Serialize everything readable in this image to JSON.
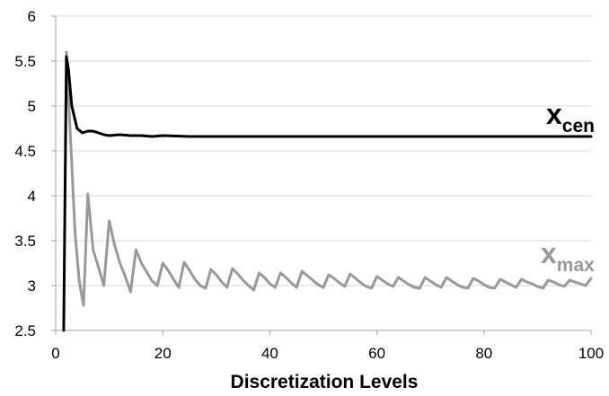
{
  "chart_data": {
    "type": "line",
    "title": "",
    "xlabel": "Discretization Levels",
    "ylabel": "",
    "xlim": [
      0,
      100
    ],
    "ylim": [
      2.5,
      6
    ],
    "x_ticks": [
      0,
      20,
      40,
      60,
      80,
      100
    ],
    "x_tick_labels": [
      "0",
      "20",
      "40",
      "60",
      "80",
      "100"
    ],
    "y_ticks": [
      2.5,
      3,
      3.5,
      4,
      4.5,
      5,
      5.5,
      6
    ],
    "y_tick_labels": [
      "2.5",
      "3",
      "3.5",
      "4",
      "4.5",
      "5",
      "5.5",
      "6"
    ],
    "grid": "horizontal",
    "legend": "none",
    "series": [
      {
        "label_main": "x",
        "label_sub": "cen",
        "color": "#000000",
        "points": [
          [
            1.5,
            2.5
          ],
          [
            2.0,
            5.55
          ],
          [
            2.4,
            5.4
          ],
          [
            3.0,
            5.0
          ],
          [
            4.0,
            4.75
          ],
          [
            5.0,
            4.7
          ],
          [
            6.0,
            4.72
          ],
          [
            7.0,
            4.72
          ],
          [
            8.0,
            4.7
          ],
          [
            9.0,
            4.68
          ],
          [
            10.0,
            4.67
          ],
          [
            12.0,
            4.68
          ],
          [
            14.0,
            4.67
          ],
          [
            16.0,
            4.67
          ],
          [
            18.0,
            4.66
          ],
          [
            20.0,
            4.67
          ],
          [
            25.0,
            4.66
          ],
          [
            30.0,
            4.66
          ],
          [
            40.0,
            4.66
          ],
          [
            60.0,
            4.66
          ],
          [
            80.0,
            4.66
          ],
          [
            100.0,
            4.66
          ]
        ]
      },
      {
        "label_main": "x",
        "label_sub": "max",
        "color": "#999999",
        "points": [
          [
            2.0,
            5.6
          ],
          [
            2.8,
            4.6
          ],
          [
            3.6,
            3.6
          ],
          [
            4.4,
            3.05
          ],
          [
            5.2,
            2.78
          ],
          [
            6.0,
            4.02
          ],
          [
            7.0,
            3.4
          ],
          [
            8.0,
            3.2
          ],
          [
            9.0,
            3.0
          ],
          [
            10.0,
            3.72
          ],
          [
            11.0,
            3.45
          ],
          [
            12.0,
            3.25
          ],
          [
            13.0,
            3.1
          ],
          [
            14.0,
            2.93
          ],
          [
            15.0,
            3.4
          ],
          [
            16.0,
            3.25
          ],
          [
            17.0,
            3.15
          ],
          [
            18.0,
            3.05
          ],
          [
            19.0,
            3.0
          ],
          [
            20.0,
            3.25
          ],
          [
            21.0,
            3.17
          ],
          [
            22.0,
            3.07
          ],
          [
            23.0,
            2.98
          ],
          [
            24.0,
            3.26
          ],
          [
            25.0,
            3.17
          ],
          [
            26.0,
            3.07
          ],
          [
            27.0,
            3.0
          ],
          [
            28.0,
            2.97
          ],
          [
            29.0,
            3.18
          ],
          [
            30.0,
            3.12
          ],
          [
            31.0,
            3.04
          ],
          [
            32.0,
            2.98
          ],
          [
            33.0,
            3.19
          ],
          [
            34.0,
            3.13
          ],
          [
            35.0,
            3.06
          ],
          [
            36.0,
            3.0
          ],
          [
            37.0,
            2.95
          ],
          [
            38.0,
            3.14
          ],
          [
            39.0,
            3.09
          ],
          [
            40.0,
            3.02
          ],
          [
            41.0,
            2.98
          ],
          [
            42.0,
            3.14
          ],
          [
            43.0,
            3.09
          ],
          [
            44.0,
            3.03
          ],
          [
            45.0,
            2.98
          ],
          [
            46.0,
            3.16
          ],
          [
            47.0,
            3.11
          ],
          [
            48.0,
            3.06
          ],
          [
            49.0,
            3.01
          ],
          [
            50.0,
            2.98
          ],
          [
            51.0,
            3.12
          ],
          [
            52.0,
            3.08
          ],
          [
            53.0,
            3.03
          ],
          [
            54.0,
            2.99
          ],
          [
            55.0,
            3.13
          ],
          [
            56.0,
            3.08
          ],
          [
            57.0,
            3.03
          ],
          [
            58.0,
            2.99
          ],
          [
            59.0,
            2.97
          ],
          [
            60.0,
            3.1
          ],
          [
            61.0,
            3.06
          ],
          [
            62.0,
            3.02
          ],
          [
            63.0,
            2.99
          ],
          [
            64.0,
            3.09
          ],
          [
            65.0,
            3.05
          ],
          [
            66.0,
            3.01
          ],
          [
            67.0,
            2.98
          ],
          [
            68.0,
            2.97
          ],
          [
            69.0,
            3.09
          ],
          [
            70.0,
            3.05
          ],
          [
            71.0,
            3.01
          ],
          [
            72.0,
            2.98
          ],
          [
            73.0,
            3.09
          ],
          [
            74.0,
            3.05
          ],
          [
            75.0,
            3.01
          ],
          [
            76.0,
            2.98
          ],
          [
            77.0,
            2.97
          ],
          [
            78.0,
            3.08
          ],
          [
            79.0,
            3.05
          ],
          [
            80.0,
            3.01
          ],
          [
            81.0,
            2.98
          ],
          [
            82.0,
            2.97
          ],
          [
            83.0,
            3.07
          ],
          [
            84.0,
            3.04
          ],
          [
            85.0,
            3.01
          ],
          [
            86.0,
            2.98
          ],
          [
            87.0,
            3.07
          ],
          [
            88.0,
            3.04
          ],
          [
            89.0,
            3.02
          ],
          [
            90.0,
            2.99
          ],
          [
            91.0,
            2.97
          ],
          [
            92.0,
            3.06
          ],
          [
            93.0,
            3.04
          ],
          [
            94.0,
            3.01
          ],
          [
            95.0,
            2.99
          ],
          [
            96.0,
            3.06
          ],
          [
            97.0,
            3.04
          ],
          [
            98.0,
            3.02
          ],
          [
            99.0,
            3.0
          ],
          [
            100.0,
            3.08
          ]
        ]
      }
    ]
  }
}
